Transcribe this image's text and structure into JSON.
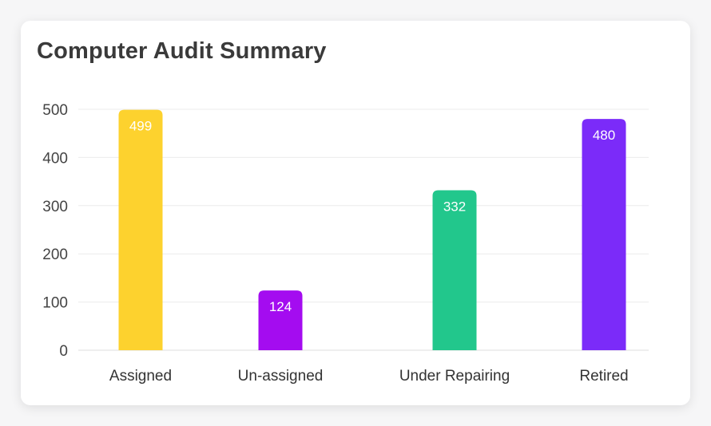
{
  "header": {
    "title": "Computer Audit Summary"
  },
  "chart_data": {
    "type": "bar",
    "title": "Computer Audit Summary",
    "xlabel": "",
    "ylabel": "",
    "categories": [
      "Assigned",
      "Un-assigned",
      "Under Repairing",
      "Retired"
    ],
    "values": [
      499,
      124,
      332,
      480
    ],
    "data_labels": [
      "499",
      "124",
      "332",
      "480"
    ],
    "colors": [
      "#fdd22e",
      "#a40cf0",
      "#22c78c",
      "#7b2bf9"
    ],
    "ylim": [
      0,
      500
    ],
    "yticks": [
      0,
      100,
      200,
      300,
      400,
      500
    ],
    "ytick_labels": [
      "0",
      "100",
      "200",
      "300",
      "400",
      "500"
    ],
    "grid": true,
    "legend": "none"
  }
}
